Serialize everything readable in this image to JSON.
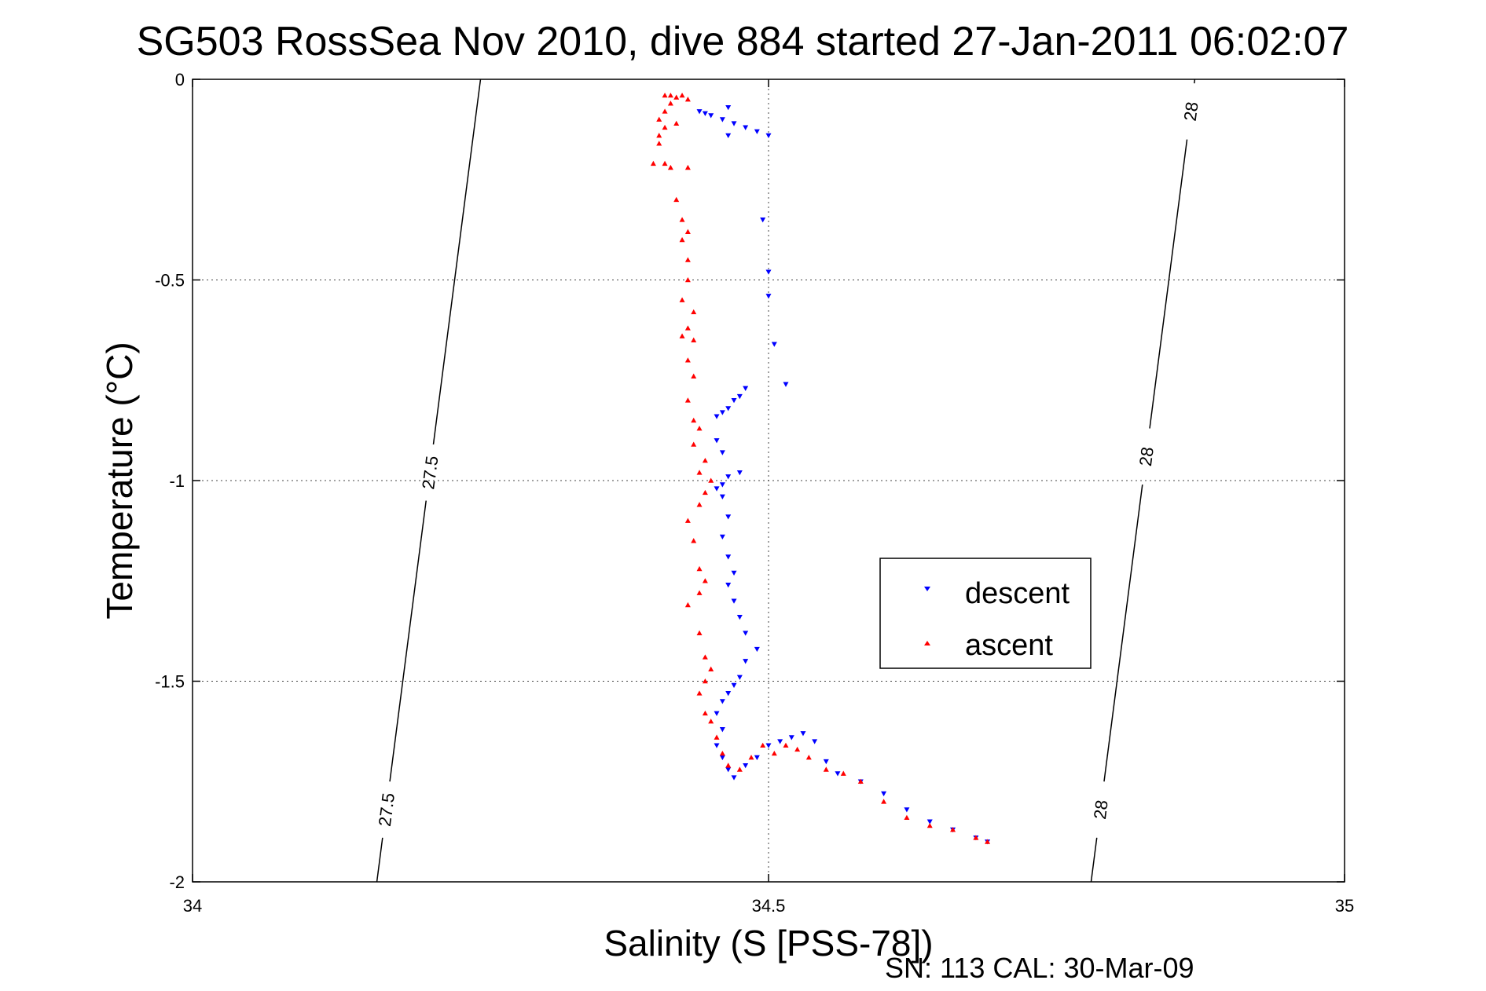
{
  "chart_data": {
    "type": "scatter",
    "title": "SG503 RossSea Nov 2010, dive 884 started 27-Jan-2011 06:02:07",
    "xlabel": "Salinity (S [PSS-78])",
    "ylabel": "Temperature (°C)",
    "xlim": [
      34,
      35
    ],
    "ylim": [
      -2,
      0
    ],
    "xticks": [
      "34",
      "34.5",
      "35"
    ],
    "yticks": [
      "0",
      "-0.5",
      "-1",
      "-1.5",
      "-2"
    ],
    "grid": true,
    "legend_position": "center-right",
    "footer": "SN: 113  CAL: 30-Mar-09",
    "colors": {
      "descent": "#0000ff",
      "ascent": "#ff0000",
      "contour": "#000000"
    },
    "contours": [
      {
        "label": "27.5",
        "label_display": [
          "27.5",
          "27.5"
        ],
        "points": [
          [
            34.25,
            0
          ],
          [
            34.16,
            -2
          ]
        ]
      },
      {
        "label": "28",
        "label_display": [
          "28",
          "28",
          "28"
        ],
        "points": [
          [
            34.87,
            0
          ],
          [
            34.78,
            -2
          ]
        ]
      }
    ],
    "series": [
      {
        "name": "descent",
        "marker": "triangle-down",
        "points": [
          [
            34.44,
            -0.08
          ],
          [
            34.445,
            -0.085
          ],
          [
            34.45,
            -0.09
          ],
          [
            34.46,
            -0.1
          ],
          [
            34.465,
            -0.07
          ],
          [
            34.47,
            -0.11
          ],
          [
            34.48,
            -0.12
          ],
          [
            34.49,
            -0.13
          ],
          [
            34.5,
            -0.14
          ],
          [
            34.465,
            -0.14
          ],
          [
            34.495,
            -0.35
          ],
          [
            34.5,
            -0.48
          ],
          [
            34.5,
            -0.54
          ],
          [
            34.505,
            -0.66
          ],
          [
            34.515,
            -0.76
          ],
          [
            34.48,
            -0.77
          ],
          [
            34.475,
            -0.79
          ],
          [
            34.47,
            -0.8
          ],
          [
            34.465,
            -0.82
          ],
          [
            34.46,
            -0.83
          ],
          [
            34.455,
            -0.84
          ],
          [
            34.455,
            -0.9
          ],
          [
            34.46,
            -0.93
          ],
          [
            34.475,
            -0.98
          ],
          [
            34.465,
            -0.99
          ],
          [
            34.46,
            -1.01
          ],
          [
            34.455,
            -1.02
          ],
          [
            34.46,
            -1.04
          ],
          [
            34.465,
            -1.09
          ],
          [
            34.46,
            -1.14
          ],
          [
            34.465,
            -1.19
          ],
          [
            34.47,
            -1.23
          ],
          [
            34.465,
            -1.26
          ],
          [
            34.47,
            -1.3
          ],
          [
            34.475,
            -1.34
          ],
          [
            34.48,
            -1.38
          ],
          [
            34.49,
            -1.42
          ],
          [
            34.48,
            -1.45
          ],
          [
            34.475,
            -1.49
          ],
          [
            34.47,
            -1.51
          ],
          [
            34.465,
            -1.53
          ],
          [
            34.46,
            -1.55
          ],
          [
            34.455,
            -1.58
          ],
          [
            34.46,
            -1.62
          ],
          [
            34.455,
            -1.66
          ],
          [
            34.46,
            -1.69
          ],
          [
            34.465,
            -1.72
          ],
          [
            34.47,
            -1.74
          ],
          [
            34.48,
            -1.71
          ],
          [
            34.49,
            -1.69
          ],
          [
            34.5,
            -1.66
          ],
          [
            34.51,
            -1.65
          ],
          [
            34.52,
            -1.64
          ],
          [
            34.53,
            -1.63
          ],
          [
            34.54,
            -1.65
          ],
          [
            34.55,
            -1.7
          ],
          [
            34.56,
            -1.73
          ],
          [
            34.58,
            -1.75
          ],
          [
            34.6,
            -1.78
          ],
          [
            34.62,
            -1.82
          ],
          [
            34.64,
            -1.85
          ],
          [
            34.66,
            -1.87
          ],
          [
            34.68,
            -1.89
          ],
          [
            34.69,
            -1.9
          ]
        ]
      },
      {
        "name": "ascent",
        "marker": "triangle-up",
        "points": [
          [
            34.41,
            -0.04
          ],
          [
            34.415,
            -0.04
          ],
          [
            34.42,
            -0.045
          ],
          [
            34.425,
            -0.04
          ],
          [
            34.43,
            -0.05
          ],
          [
            34.415,
            -0.06
          ],
          [
            34.41,
            -0.08
          ],
          [
            34.405,
            -0.1
          ],
          [
            34.41,
            -0.12
          ],
          [
            34.405,
            -0.14
          ],
          [
            34.42,
            -0.11
          ],
          [
            34.405,
            -0.16
          ],
          [
            34.4,
            -0.21
          ],
          [
            34.41,
            -0.21
          ],
          [
            34.415,
            -0.22
          ],
          [
            34.43,
            -0.22
          ],
          [
            34.42,
            -0.3
          ],
          [
            34.425,
            -0.35
          ],
          [
            34.43,
            -0.38
          ],
          [
            34.425,
            -0.4
          ],
          [
            34.43,
            -0.45
          ],
          [
            34.43,
            -0.5
          ],
          [
            34.425,
            -0.55
          ],
          [
            34.435,
            -0.58
          ],
          [
            34.43,
            -0.62
          ],
          [
            34.425,
            -0.64
          ],
          [
            34.435,
            -0.65
          ],
          [
            34.43,
            -0.7
          ],
          [
            34.435,
            -0.74
          ],
          [
            34.43,
            -0.8
          ],
          [
            34.435,
            -0.85
          ],
          [
            34.44,
            -0.87
          ],
          [
            34.435,
            -0.91
          ],
          [
            34.445,
            -0.95
          ],
          [
            34.44,
            -0.98
          ],
          [
            34.45,
            -1.0
          ],
          [
            34.445,
            -1.03
          ],
          [
            34.44,
            -1.06
          ],
          [
            34.43,
            -1.1
          ],
          [
            34.435,
            -1.15
          ],
          [
            34.44,
            -1.22
          ],
          [
            34.445,
            -1.25
          ],
          [
            34.44,
            -1.28
          ],
          [
            34.43,
            -1.31
          ],
          [
            34.44,
            -1.38
          ],
          [
            34.445,
            -1.44
          ],
          [
            34.45,
            -1.47
          ],
          [
            34.445,
            -1.5
          ],
          [
            34.44,
            -1.53
          ],
          [
            34.445,
            -1.58
          ],
          [
            34.45,
            -1.6
          ],
          [
            34.455,
            -1.64
          ],
          [
            34.46,
            -1.68
          ],
          [
            34.465,
            -1.71
          ],
          [
            34.475,
            -1.72
          ],
          [
            34.485,
            -1.69
          ],
          [
            34.495,
            -1.66
          ],
          [
            34.505,
            -1.68
          ],
          [
            34.515,
            -1.66
          ],
          [
            34.525,
            -1.67
          ],
          [
            34.535,
            -1.69
          ],
          [
            34.55,
            -1.72
          ],
          [
            34.565,
            -1.73
          ],
          [
            34.58,
            -1.75
          ],
          [
            34.6,
            -1.8
          ],
          [
            34.62,
            -1.84
          ],
          [
            34.64,
            -1.86
          ],
          [
            34.66,
            -1.87
          ],
          [
            34.68,
            -1.89
          ],
          [
            34.69,
            -1.9
          ]
        ]
      }
    ]
  }
}
